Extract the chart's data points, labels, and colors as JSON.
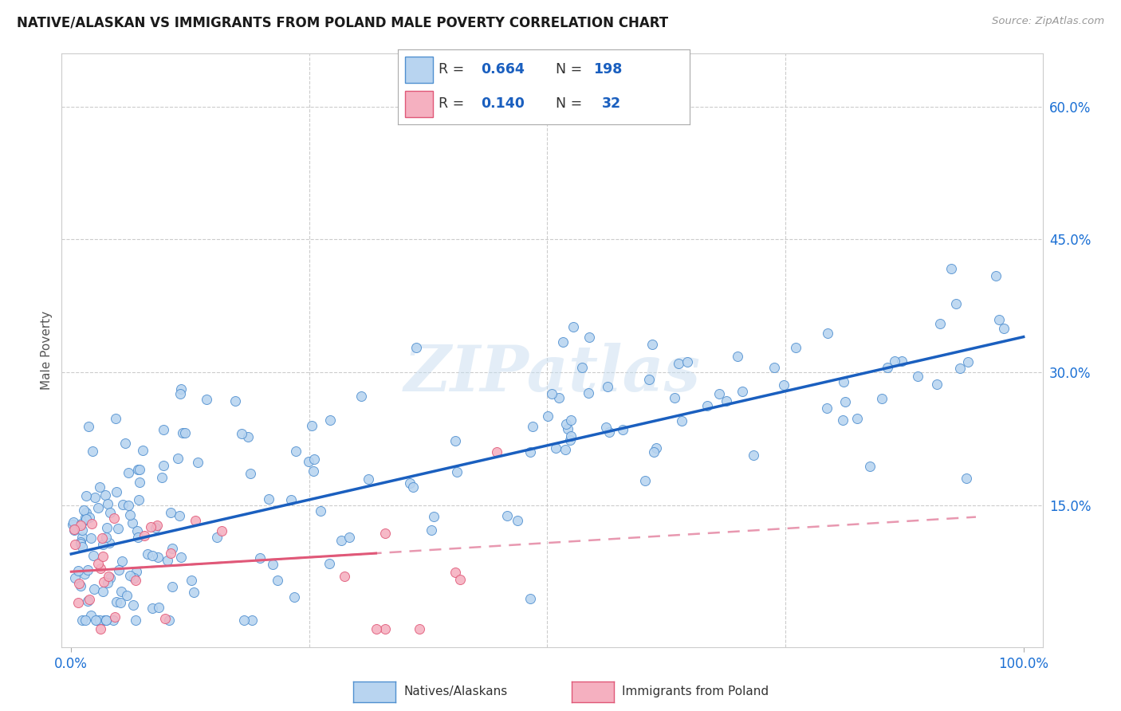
{
  "title": "NATIVE/ALASKAN VS IMMIGRANTS FROM POLAND MALE POVERTY CORRELATION CHART",
  "source": "Source: ZipAtlas.com",
  "ylabel": "Male Poverty",
  "xlim": [
    -0.01,
    1.02
  ],
  "ylim": [
    -0.01,
    0.66
  ],
  "native_R": 0.664,
  "native_N": 198,
  "poland_R": 0.14,
  "poland_N": 32,
  "native_color": "#b8d4f0",
  "native_edge_color": "#5090d0",
  "poland_color": "#f5b0c0",
  "poland_edge_color": "#e05878",
  "native_line_color": "#1a5fbf",
  "poland_line_color": "#e05878",
  "poland_dash_color": "#e898b0",
  "watermark": "ZIPatlas",
  "legend_label_native": "Natives/Alaskans",
  "legend_label_poland": "Immigrants from Poland",
  "yticks_vals": [
    0.15,
    0.3,
    0.45,
    0.6
  ],
  "ytick_labels": [
    "15.0%",
    "30.0%",
    "45.0%",
    "60.0%"
  ],
  "xtick_labels": [
    "0.0%",
    "100.0%"
  ],
  "native_line_intercept": 0.095,
  "native_line_slope": 0.245,
  "poland_line_intercept": 0.075,
  "poland_line_slope": 0.065,
  "native_seed": 123,
  "poland_seed": 55
}
